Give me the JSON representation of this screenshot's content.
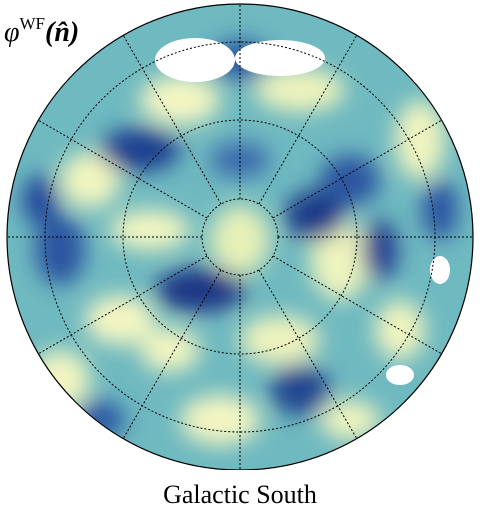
{
  "header": {
    "symbol": "φ",
    "superscript": "WF",
    "argument": "(n̂)"
  },
  "caption": "Galactic South"
}
